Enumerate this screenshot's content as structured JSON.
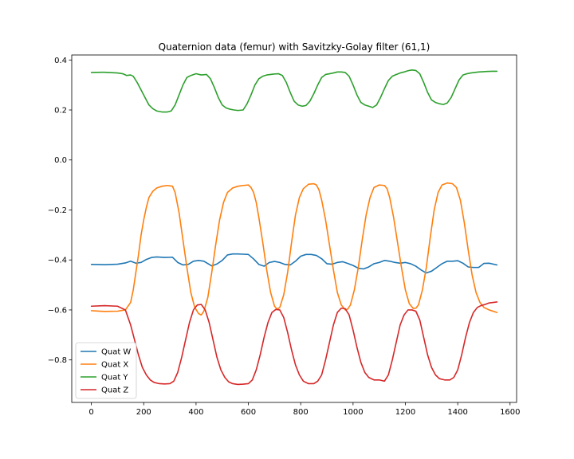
{
  "chart_data": {
    "type": "line",
    "title": "Quaternion data (femur) with Savitzky-Golay filter (61,1)",
    "xlabel": "",
    "ylabel": "",
    "xlim": [
      -75,
      1625
    ],
    "ylim": [
      -0.97,
      0.42
    ],
    "x_ticks": [
      0,
      200,
      400,
      600,
      800,
      1000,
      1200,
      1400,
      1600
    ],
    "x_tick_labels": [
      "0",
      "200",
      "400",
      "600",
      "800",
      "1000",
      "1200",
      "1400",
      "1600"
    ],
    "y_ticks": [
      -0.8,
      -0.6,
      -0.4,
      -0.2,
      0.0,
      0.2,
      0.4
    ],
    "y_tick_labels": [
      "−0.8",
      "−0.6",
      "−0.4",
      "−0.2",
      "0.0",
      "0.2",
      "0.4"
    ],
    "grid": false,
    "legend_position": "lower-left",
    "series": [
      {
        "name": "Quat W",
        "color": "#1f77b4",
        "x": [
          0,
          50,
          100,
          130,
          150,
          170,
          190,
          210,
          230,
          250,
          280,
          310,
          330,
          350,
          370,
          390,
          410,
          430,
          460,
          480,
          500,
          520,
          540,
          560,
          580,
          600,
          620,
          640,
          660,
          680,
          700,
          720,
          740,
          760,
          780,
          800,
          820,
          840,
          860,
          880,
          900,
          920,
          940,
          960,
          980,
          1000,
          1020,
          1040,
          1060,
          1080,
          1100,
          1120,
          1140,
          1160,
          1180,
          1200,
          1220,
          1240,
          1260,
          1280,
          1300,
          1320,
          1340,
          1360,
          1380,
          1400,
          1420,
          1440,
          1460,
          1480,
          1500,
          1520,
          1550
        ],
        "values": [
          -0.418,
          -0.419,
          -0.417,
          -0.412,
          -0.405,
          -0.413,
          -0.41,
          -0.398,
          -0.39,
          -0.388,
          -0.39,
          -0.389,
          -0.41,
          -0.42,
          -0.418,
          -0.405,
          -0.402,
          -0.405,
          -0.424,
          -0.416,
          -0.402,
          -0.38,
          -0.376,
          -0.376,
          -0.377,
          -0.378,
          -0.396,
          -0.418,
          -0.425,
          -0.41,
          -0.406,
          -0.41,
          -0.418,
          -0.42,
          -0.405,
          -0.385,
          -0.378,
          -0.378,
          -0.382,
          -0.395,
          -0.415,
          -0.417,
          -0.41,
          -0.407,
          -0.414,
          -0.422,
          -0.433,
          -0.436,
          -0.428,
          -0.415,
          -0.41,
          -0.402,
          -0.405,
          -0.41,
          -0.413,
          -0.41,
          -0.415,
          -0.425,
          -0.44,
          -0.452,
          -0.445,
          -0.43,
          -0.415,
          -0.405,
          -0.405,
          -0.403,
          -0.413,
          -0.428,
          -0.43,
          -0.43,
          -0.414,
          -0.413,
          -0.42
        ]
      },
      {
        "name": "Quat X",
        "color": "#ff7f0e",
        "x": [
          0,
          50,
          100,
          130,
          150,
          160,
          170,
          180,
          190,
          200,
          210,
          220,
          235,
          250,
          270,
          290,
          310,
          320,
          335,
          350,
          365,
          380,
          395,
          410,
          420,
          430,
          445,
          460,
          475,
          490,
          505,
          520,
          540,
          560,
          580,
          600,
          610,
          620,
          630,
          640,
          655,
          670,
          685,
          700,
          710,
          720,
          735,
          750,
          765,
          780,
          795,
          810,
          830,
          850,
          860,
          870,
          880,
          895,
          910,
          925,
          940,
          955,
          970,
          980,
          990,
          1005,
          1020,
          1035,
          1050,
          1065,
          1080,
          1100,
          1120,
          1130,
          1140,
          1155,
          1170,
          1185,
          1200,
          1215,
          1230,
          1240,
          1250,
          1265,
          1280,
          1295,
          1310,
          1325,
          1340,
          1360,
          1380,
          1395,
          1410,
          1425,
          1440,
          1455,
          1470,
          1485,
          1500,
          1520,
          1550
        ],
        "values": [
          -0.603,
          -0.606,
          -0.605,
          -0.6,
          -0.57,
          -0.52,
          -0.45,
          -0.38,
          -0.3,
          -0.24,
          -0.19,
          -0.15,
          -0.125,
          -0.112,
          -0.105,
          -0.102,
          -0.105,
          -0.13,
          -0.21,
          -0.32,
          -0.43,
          -0.53,
          -0.59,
          -0.615,
          -0.62,
          -0.605,
          -0.55,
          -0.45,
          -0.34,
          -0.24,
          -0.17,
          -0.13,
          -0.112,
          -0.105,
          -0.102,
          -0.1,
          -0.11,
          -0.13,
          -0.17,
          -0.23,
          -0.33,
          -0.44,
          -0.53,
          -0.585,
          -0.597,
          -0.59,
          -0.54,
          -0.45,
          -0.33,
          -0.22,
          -0.15,
          -0.115,
          -0.097,
          -0.095,
          -0.1,
          -0.12,
          -0.16,
          -0.24,
          -0.34,
          -0.44,
          -0.53,
          -0.58,
          -0.6,
          -0.596,
          -0.58,
          -0.52,
          -0.43,
          -0.32,
          -0.22,
          -0.15,
          -0.11,
          -0.1,
          -0.102,
          -0.115,
          -0.15,
          -0.23,
          -0.33,
          -0.43,
          -0.52,
          -0.575,
          -0.594,
          -0.593,
          -0.58,
          -0.52,
          -0.43,
          -0.31,
          -0.2,
          -0.13,
          -0.1,
          -0.092,
          -0.095,
          -0.11,
          -0.16,
          -0.25,
          -0.36,
          -0.46,
          -0.53,
          -0.57,
          -0.59,
          -0.6,
          -0.61
        ]
      },
      {
        "name": "Quat Y",
        "color": "#2ca02c",
        "x": [
          0,
          50,
          100,
          120,
          135,
          150,
          160,
          175,
          190,
          205,
          220,
          235,
          250,
          270,
          290,
          305,
          320,
          335,
          350,
          365,
          380,
          400,
          420,
          440,
          455,
          470,
          485,
          500,
          515,
          530,
          545,
          560,
          580,
          595,
          610,
          625,
          640,
          655,
          670,
          685,
          700,
          715,
          730,
          745,
          760,
          775,
          790,
          805,
          820,
          835,
          850,
          865,
          880,
          895,
          910,
          925,
          940,
          955,
          970,
          985,
          1000,
          1015,
          1030,
          1045,
          1060,
          1075,
          1090,
          1105,
          1120,
          1135,
          1150,
          1165,
          1180,
          1195,
          1210,
          1225,
          1240,
          1255,
          1270,
          1285,
          1300,
          1315,
          1330,
          1345,
          1360,
          1375,
          1390,
          1405,
          1420,
          1435,
          1450,
          1465,
          1480,
          1495,
          1510,
          1530,
          1550
        ],
        "values": [
          0.35,
          0.351,
          0.348,
          0.345,
          0.338,
          0.34,
          0.335,
          0.31,
          0.28,
          0.25,
          0.22,
          0.205,
          0.196,
          0.192,
          0.192,
          0.196,
          0.22,
          0.26,
          0.3,
          0.33,
          0.338,
          0.345,
          0.34,
          0.342,
          0.325,
          0.29,
          0.25,
          0.22,
          0.208,
          0.203,
          0.2,
          0.198,
          0.2,
          0.225,
          0.26,
          0.3,
          0.325,
          0.335,
          0.34,
          0.342,
          0.344,
          0.345,
          0.338,
          0.31,
          0.27,
          0.235,
          0.22,
          0.215,
          0.218,
          0.235,
          0.265,
          0.3,
          0.33,
          0.342,
          0.345,
          0.348,
          0.352,
          0.352,
          0.35,
          0.335,
          0.3,
          0.26,
          0.23,
          0.22,
          0.215,
          0.21,
          0.22,
          0.25,
          0.285,
          0.318,
          0.335,
          0.342,
          0.348,
          0.352,
          0.357,
          0.36,
          0.358,
          0.345,
          0.31,
          0.27,
          0.24,
          0.23,
          0.225,
          0.222,
          0.228,
          0.25,
          0.285,
          0.32,
          0.34,
          0.345,
          0.348,
          0.35,
          0.352,
          0.353,
          0.354,
          0.355,
          0.355
        ]
      },
      {
        "name": "Quat Z",
        "color": "#d62728",
        "x": [
          0,
          50,
          100,
          130,
          150,
          165,
          180,
          195,
          210,
          225,
          240,
          260,
          280,
          300,
          315,
          330,
          345,
          360,
          375,
          390,
          405,
          420,
          435,
          450,
          465,
          480,
          495,
          510,
          525,
          540,
          560,
          580,
          600,
          615,
          630,
          645,
          660,
          675,
          690,
          705,
          720,
          735,
          750,
          765,
          780,
          795,
          810,
          830,
          850,
          865,
          880,
          895,
          910,
          925,
          940,
          955,
          970,
          985,
          1000,
          1015,
          1030,
          1045,
          1060,
          1080,
          1100,
          1120,
          1135,
          1150,
          1165,
          1180,
          1195,
          1210,
          1225,
          1240,
          1255,
          1270,
          1285,
          1300,
          1315,
          1330,
          1350,
          1370,
          1385,
          1400,
          1415,
          1430,
          1445,
          1460,
          1475,
          1490,
          1505,
          1520,
          1550
        ],
        "values": [
          -0.585,
          -0.583,
          -0.585,
          -0.6,
          -0.66,
          -0.72,
          -0.78,
          -0.83,
          -0.86,
          -0.88,
          -0.89,
          -0.895,
          -0.896,
          -0.895,
          -0.885,
          -0.85,
          -0.79,
          -0.72,
          -0.65,
          -0.6,
          -0.58,
          -0.578,
          -0.6,
          -0.65,
          -0.72,
          -0.79,
          -0.84,
          -0.87,
          -0.888,
          -0.895,
          -0.898,
          -0.897,
          -0.895,
          -0.88,
          -0.84,
          -0.78,
          -0.71,
          -0.65,
          -0.61,
          -0.598,
          -0.6,
          -0.63,
          -0.69,
          -0.76,
          -0.82,
          -0.86,
          -0.885,
          -0.895,
          -0.895,
          -0.885,
          -0.86,
          -0.8,
          -0.73,
          -0.66,
          -0.61,
          -0.593,
          -0.595,
          -0.62,
          -0.68,
          -0.75,
          -0.81,
          -0.85,
          -0.87,
          -0.88,
          -0.88,
          -0.885,
          -0.86,
          -0.8,
          -0.73,
          -0.66,
          -0.62,
          -0.6,
          -0.6,
          -0.605,
          -0.64,
          -0.71,
          -0.78,
          -0.83,
          -0.86,
          -0.875,
          -0.88,
          -0.88,
          -0.87,
          -0.84,
          -0.78,
          -0.71,
          -0.65,
          -0.61,
          -0.59,
          -0.582,
          -0.578,
          -0.572,
          -0.568
        ]
      }
    ]
  }
}
